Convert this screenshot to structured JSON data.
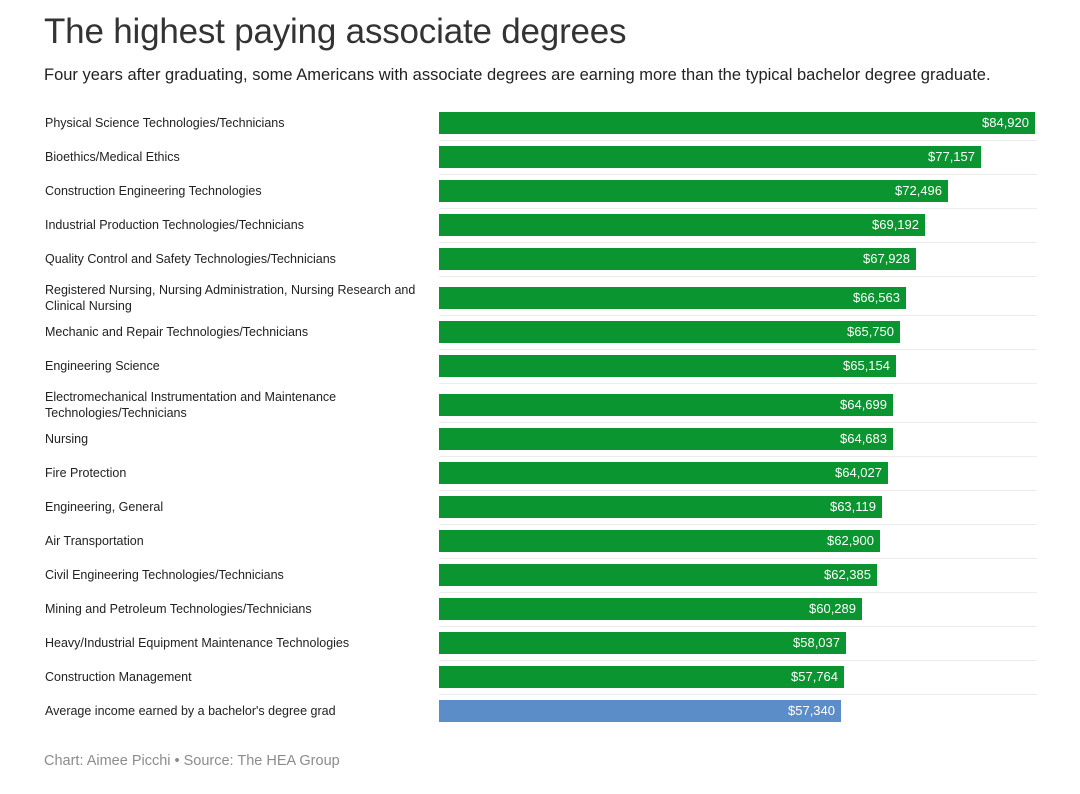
{
  "header": {
    "title": "The highest paying associate degrees",
    "subtitle": "Four years after graduating, some Americans with associate degrees are earning more than the typical bachelor degree graduate."
  },
  "footer": {
    "credit": "Chart: Aimee Picchi",
    "separator": "•",
    "source": "Source: The HEA Group"
  },
  "colors": {
    "associate_bar": "#0a9531",
    "bachelor_bar": "#5b8dc9"
  },
  "chart_data": {
    "type": "bar",
    "orientation": "horizontal",
    "title": "The highest paying associate degrees",
    "subtitle": "Four years after graduating, some Americans with associate degrees are earning more than the typical bachelor degree graduate.",
    "xlabel": "",
    "ylabel": "",
    "xlim": [
      0,
      84920
    ],
    "grid": false,
    "legend": "none",
    "categories": [
      "Physical Science Technologies/Technicians",
      "Bioethics/Medical Ethics",
      "Construction Engineering Technologies",
      "Industrial Production Technologies/Technicians",
      "Quality Control and Safety Technologies/Technicians",
      "Registered Nursing, Nursing Administration, Nursing Research and Clinical Nursing",
      "Mechanic and Repair Technologies/Technicians",
      "Engineering Science",
      "Electromechanical Instrumentation and Maintenance Technologies/Technicians",
      "Nursing",
      "Fire Protection",
      "Engineering, General",
      "Air Transportation",
      "Civil Engineering Technologies/Technicians",
      "Mining and Petroleum Technologies/Technicians",
      "Heavy/Industrial Equipment Maintenance Technologies",
      "Construction Management",
      "Average income earned by a bachelor's degree grad"
    ],
    "values": [
      84920,
      77157,
      72496,
      69192,
      67928,
      66563,
      65750,
      65154,
      64699,
      64683,
      64027,
      63119,
      62900,
      62385,
      60289,
      58037,
      57764,
      57340
    ],
    "value_labels": [
      "$84,920",
      "$77,157",
      "$72,496",
      "$69,192",
      "$67,928",
      "$66,563",
      "$65,750",
      "$65,154",
      "$64,699",
      "$64,683",
      "$64,027",
      "$63,119",
      "$62,900",
      "$62,385",
      "$60,289",
      "$58,037",
      "$57,764",
      "$57,340"
    ],
    "highlight_index": 17
  }
}
